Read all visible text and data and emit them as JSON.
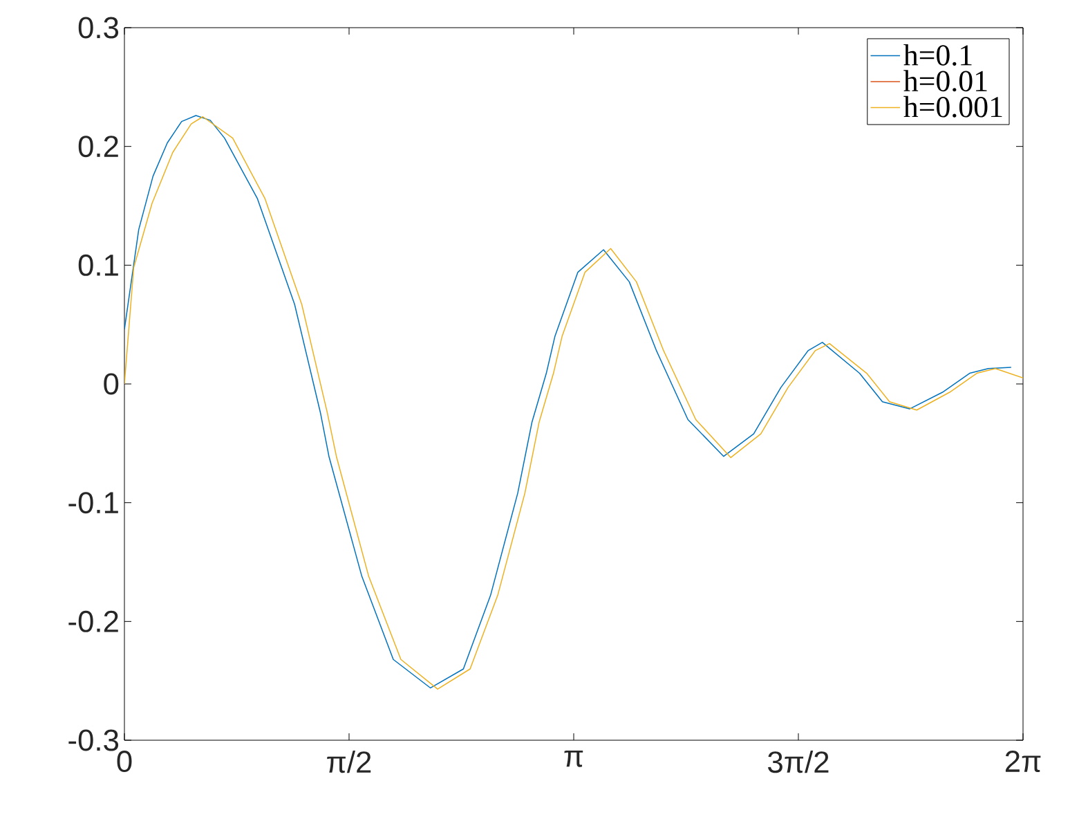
{
  "chart_data": {
    "type": "line",
    "xlim": [
      0,
      6.2832
    ],
    "ylim": [
      -0.3,
      0.3
    ],
    "xticks": [
      0,
      {
        "value": 1.5708,
        "label": "π/2"
      },
      {
        "value": 3.1416,
        "label": "π"
      },
      {
        "value": 4.7124,
        "label": "3π/2"
      },
      {
        "value": 6.2832,
        "label": "2π"
      }
    ],
    "yticks": [
      -0.3,
      -0.2,
      -0.1,
      0,
      0.1,
      0.2,
      0.3
    ],
    "legend": "top right",
    "grid": false,
    "marker": "none",
    "line_style": "solid",
    "series": [
      {
        "name": "h=0.1",
        "color": "#0072bd",
        "x": [
          0,
          0.1,
          0.2,
          0.3,
          0.4,
          0.5,
          0.6,
          0.7,
          0.93,
          1.19,
          1.37,
          1.43,
          1.66,
          1.88,
          2.14,
          2.37,
          2.56,
          2.75,
          2.85,
          2.95,
          3.01,
          3.17,
          3.35,
          3.53,
          3.72,
          3.94,
          4.19,
          4.4,
          4.59,
          4.78,
          4.88,
          5.14,
          5.3,
          5.49,
          5.72,
          5.91,
          6.04,
          6.2
        ],
        "values": [
          0.046,
          0.13,
          0.175,
          0.203,
          0.221,
          0.226,
          0.222,
          0.207,
          0.156,
          0.067,
          -0.024,
          -0.061,
          -0.162,
          -0.232,
          -0.256,
          -0.24,
          -0.178,
          -0.092,
          -0.032,
          0.009,
          0.04,
          0.094,
          0.113,
          0.086,
          0.028,
          -0.03,
          -0.061,
          -0.042,
          -0.003,
          0.028,
          0.035,
          0.009,
          -0.015,
          -0.021,
          -0.007,
          0.009,
          0.013,
          0.014
        ]
      },
      {
        "name": "h=0.01",
        "color": "#d95319"
      },
      {
        "name": "h=0.001",
        "color": "#edb120",
        "x": [
          0,
          0.065,
          0.193,
          0.338,
          0.467,
          0.548,
          0.757,
          0.983,
          1.24,
          1.418,
          1.482,
          1.708,
          1.933,
          2.19,
          2.417,
          2.61,
          2.8,
          2.9,
          3.0,
          3.06,
          3.22,
          3.4,
          3.58,
          3.77,
          3.995,
          4.24,
          4.45,
          4.64,
          4.83,
          4.93,
          5.19,
          5.35,
          5.54,
          5.77,
          5.96,
          6.09,
          6.2832
        ],
        "values": [
          0,
          0.098,
          0.152,
          0.195,
          0.219,
          0.225,
          0.207,
          0.156,
          0.067,
          -0.024,
          -0.061,
          -0.162,
          -0.232,
          -0.257,
          -0.24,
          -0.178,
          -0.092,
          -0.032,
          0.009,
          0.04,
          0.094,
          0.114,
          0.086,
          0.028,
          -0.03,
          -0.062,
          -0.042,
          -0.003,
          0.028,
          0.034,
          0.009,
          -0.015,
          -0.022,
          -0.007,
          0.009,
          0.013,
          0.005
        ]
      }
    ]
  }
}
